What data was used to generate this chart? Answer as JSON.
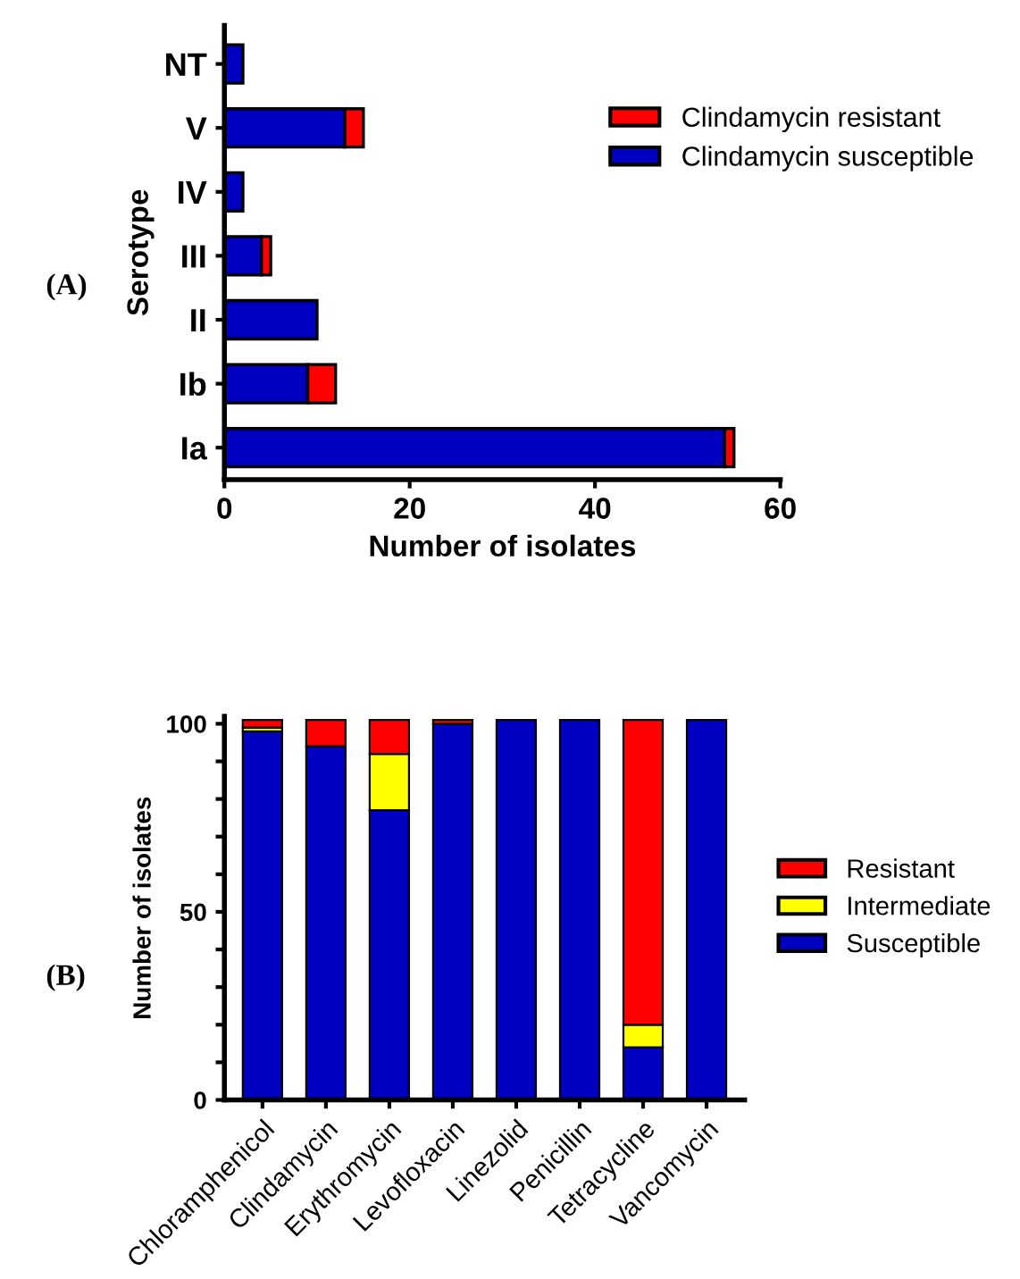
{
  "chart_data": [
    {
      "type": "bar",
      "orientation": "horizontal",
      "stacked": true,
      "ylabel": "Serotype",
      "xlabel": "Number of isolates",
      "categories": [
        "NT",
        "V",
        "IV",
        "III",
        "II",
        "Ib",
        "Ia"
      ],
      "series": [
        {
          "name": "Clindamycin susceptible",
          "color": "#0000c0",
          "values": [
            2,
            13,
            2,
            4,
            10,
            9,
            54
          ]
        },
        {
          "name": "Clindamycin resistant",
          "color": "#ff0000",
          "values": [
            null,
            2,
            null,
            1,
            null,
            3,
            1
          ]
        }
      ],
      "xlim": [
        0,
        60
      ],
      "xticks": [
        0,
        20,
        40,
        60
      ],
      "grid": false,
      "legend": "right",
      "annotations": [
        "(A)"
      ]
    },
    {
      "type": "bar",
      "stacked": true,
      "ylabel": "Number of isolates",
      "categories": [
        "Chloramphenicol",
        "Clindamycin",
        "Erythromycin",
        "Levofloxacin",
        "Linezolid",
        "Penicillin",
        "Tetracycline",
        "Vancomycin"
      ],
      "series": [
        {
          "name": "Susceptible",
          "color": "#0000c0",
          "values": [
            98,
            94,
            77,
            100,
            101,
            101,
            14,
            101
          ]
        },
        {
          "name": "Intermediate",
          "color": "#ffff00",
          "values": [
            1,
            null,
            15,
            null,
            null,
            null,
            6,
            null
          ]
        },
        {
          "name": "Resistant",
          "color": "#ff0000",
          "values": [
            2,
            7,
            9,
            1,
            null,
            null,
            81,
            null
          ]
        }
      ],
      "ylim": [
        0,
        102
      ],
      "yticks": [
        0,
        {
          "value": 10,
          "label": null
        },
        {
          "value": 20,
          "label": null
        },
        {
          "value": 30,
          "label": null
        },
        {
          "value": 40,
          "label": null
        },
        50,
        {
          "value": 60,
          "label": null
        },
        {
          "value": 70,
          "label": null
        },
        {
          "value": 80,
          "label": null
        },
        {
          "value": 90,
          "label": null
        },
        100
      ],
      "grid": false,
      "legend": "right",
      "annotations": [
        "(B)"
      ]
    }
  ]
}
